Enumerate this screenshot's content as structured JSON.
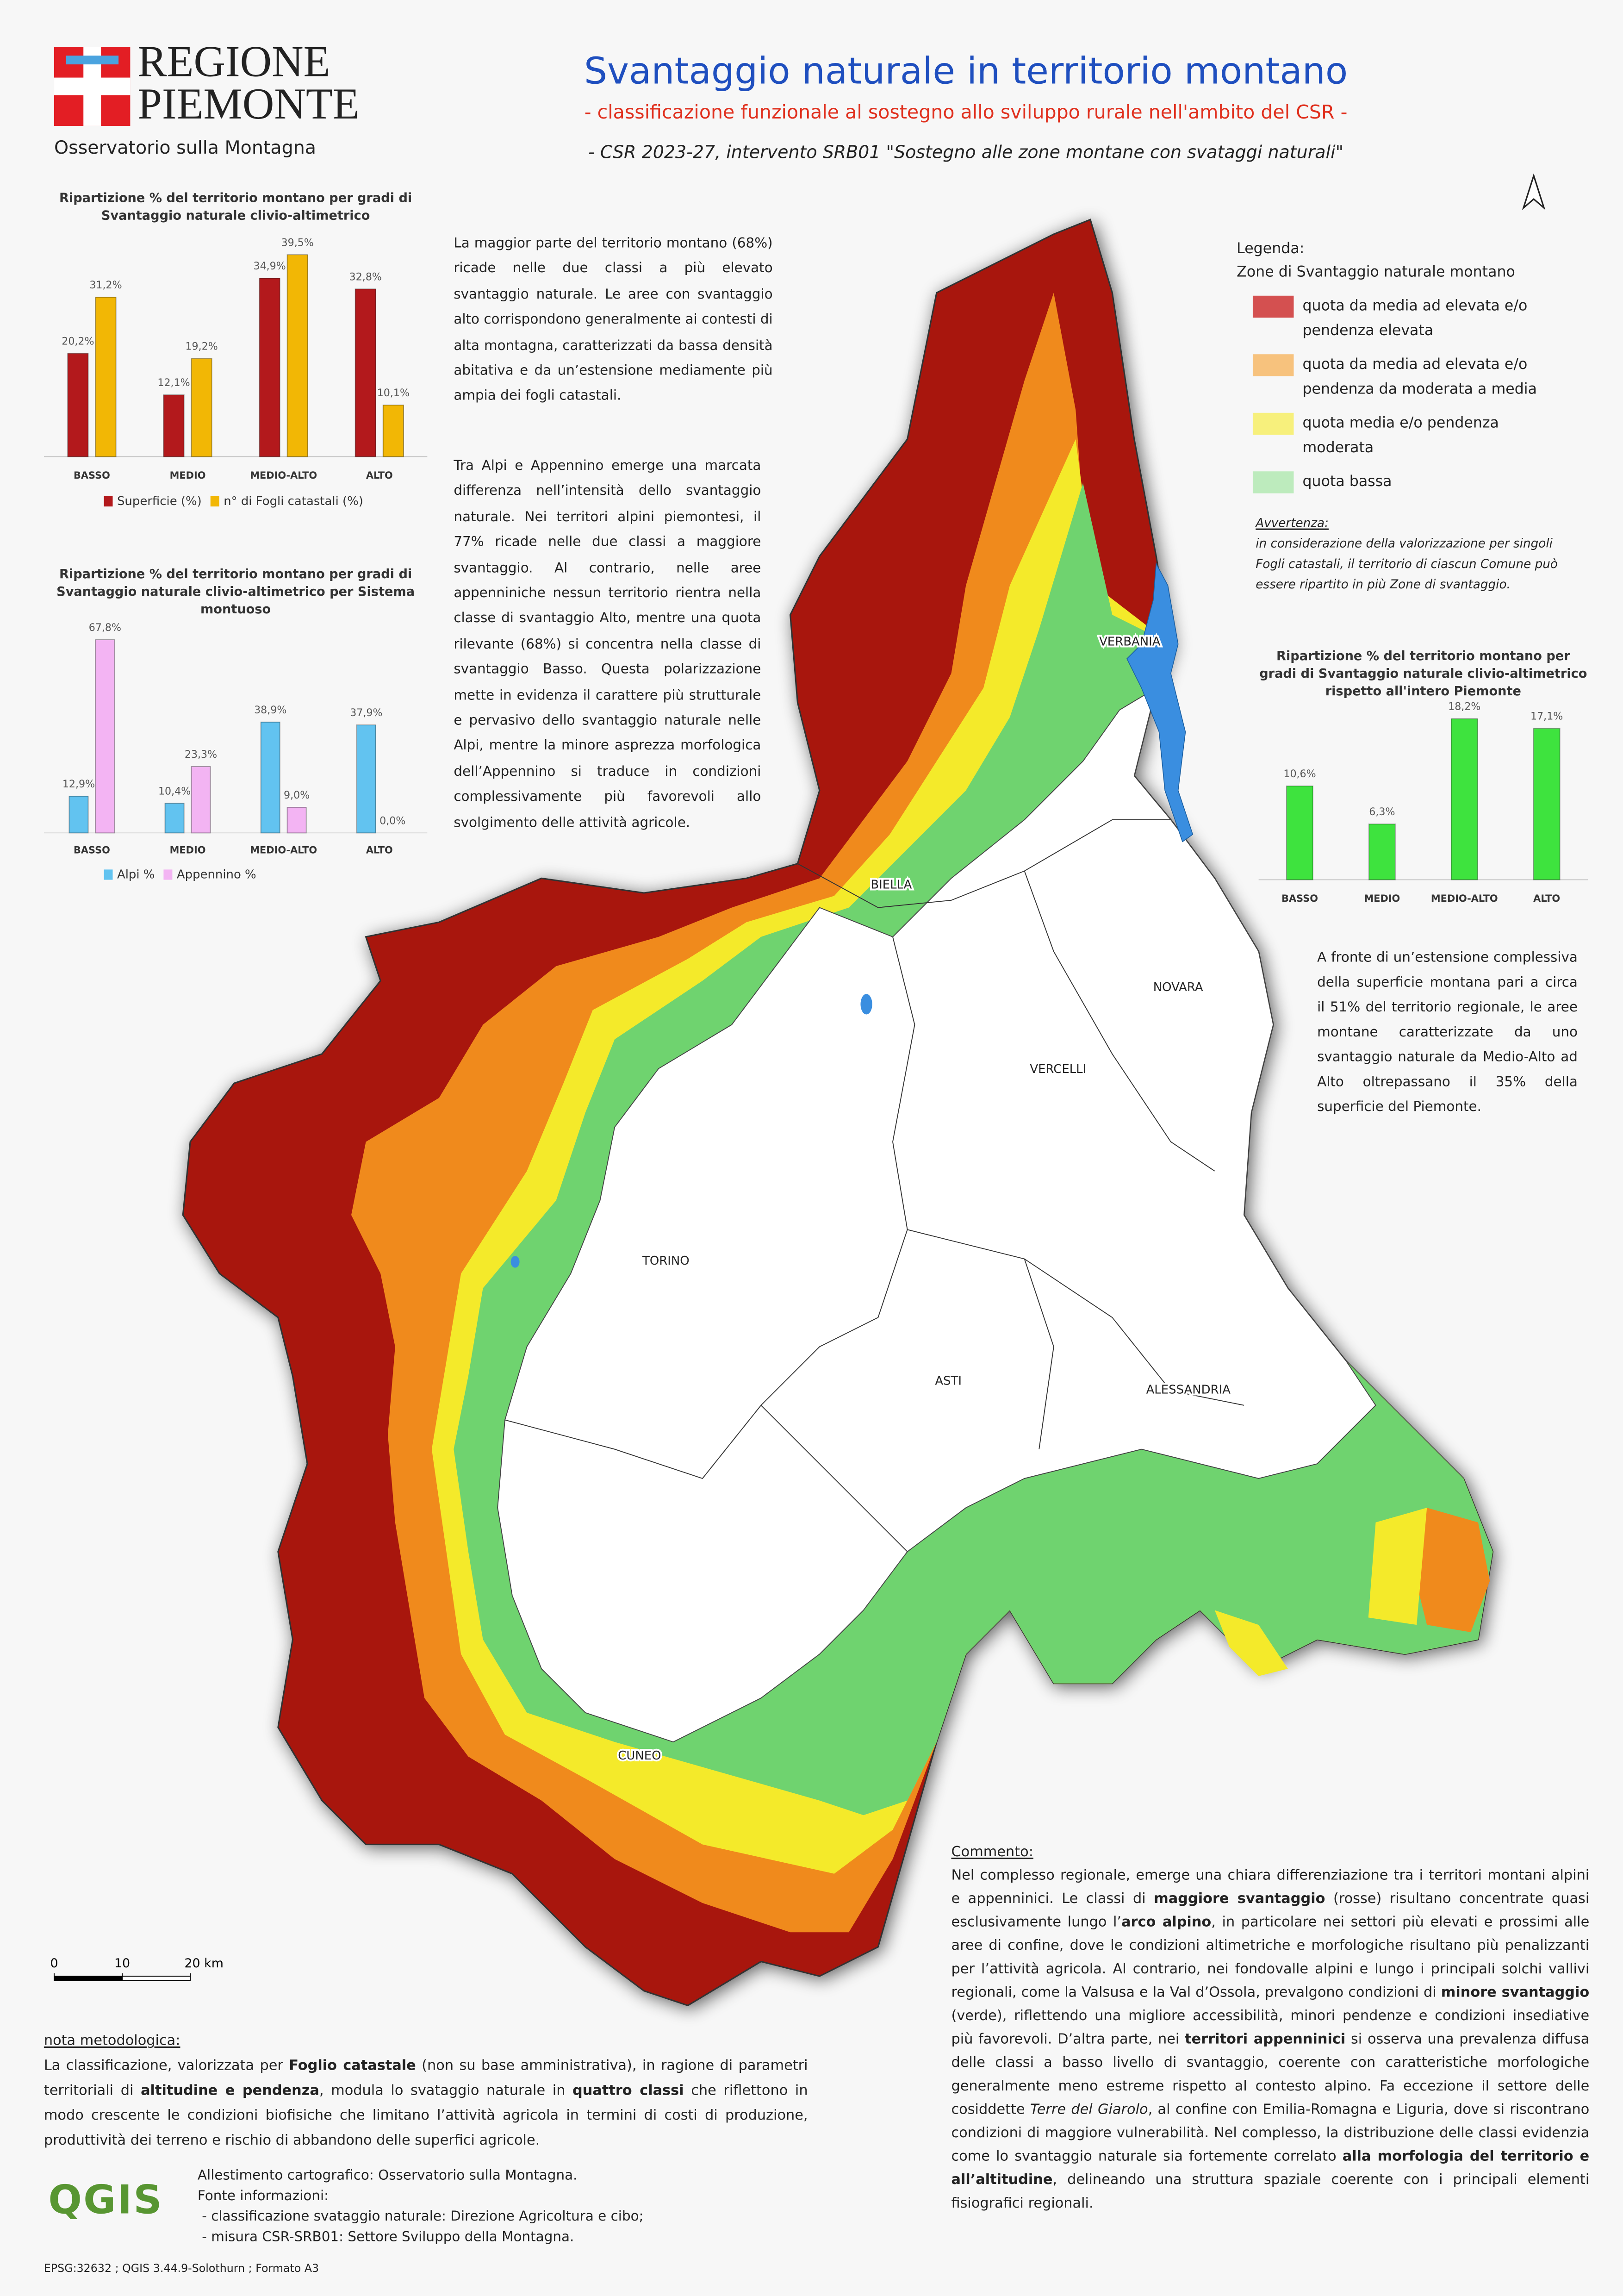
{
  "header": {
    "logo_line1": "REGIONE",
    "logo_line2": "PIEMONTE",
    "logo_caption": "Osservatorio sulla Montagna",
    "title": "Svantaggio naturale in territorio montano",
    "subtitle": "- classificazione funzionale al sostegno allo sviluppo rurale nell'ambito del CSR -",
    "subtitle2": "- CSR 2023-27, intervento SRB01 \"Sostegno alle zone montane con svataggi naturali\""
  },
  "chart_data": [
    {
      "type": "bar",
      "title": "Ripartizione % del territorio montano per gradi di Svantaggio naturale clivio-altimetrico",
      "categories": [
        "BASSO",
        "MEDIO",
        "MEDIO-ALTO",
        "ALTO"
      ],
      "series": [
        {
          "name": "Superficie (%)",
          "color": "#b3191c",
          "values": [
            20.2,
            12.1,
            34.9,
            32.8
          ],
          "value_labels": [
            "20,2%",
            "12,1%",
            "34,9%",
            "32,8%"
          ]
        },
        {
          "name": "n° di Fogli catastali (%)",
          "color": "#f2b705",
          "values": [
            31.2,
            19.2,
            39.5,
            10.1
          ],
          "value_labels": [
            "31,2%",
            "19,2%",
            "39,5%",
            "10,1%"
          ]
        }
      ]
    },
    {
      "type": "bar",
      "title": "Ripartizione % del territorio montano per gradi di Svantaggio naturale clivio-altimetrico per Sistema montuoso",
      "categories": [
        "BASSO",
        "MEDIO",
        "MEDIO-ALTO",
        "ALTO"
      ],
      "series": [
        {
          "name": "Alpi %",
          "color": "#62c3f0",
          "values": [
            12.9,
            10.4,
            38.9,
            37.9
          ],
          "value_labels": [
            "12,9%",
            "10,4%",
            "38,9%",
            "37,9%"
          ]
        },
        {
          "name": "Appennino %",
          "color": "#f3b4f3",
          "values": [
            67.8,
            23.3,
            9.0,
            0.0
          ],
          "value_labels": [
            "67,8%",
            "23,3%",
            "9,0%",
            "0,0%"
          ]
        }
      ]
    },
    {
      "type": "bar",
      "title": "Ripartizione % del territorio montano per gradi di Svantaggio naturale clivio-altimetrico rispetto all'intero Piemonte",
      "categories": [
        "BASSO",
        "MEDIO",
        "MEDIO-ALTO",
        "ALTO"
      ],
      "values": [
        10.6,
        6.3,
        18.2,
        17.1
      ],
      "value_labels": [
        "10,6%",
        "6,3%",
        "18,2%",
        "17,1%"
      ],
      "color": "#3ee33e"
    }
  ],
  "paragraph1": "La maggior parte del territorio montano (68%) ricade nelle due classi a più elevato svantaggio naturale. Le aree con svantaggio alto corrispondono generalmente ai contesti di alta montagna, caratterizzati da bassa densità abitativa e da un’estensione mediamente più ampia dei fogli catastali.",
  "paragraph2": "Tra Alpi e Appennino emerge una marcata differenza nell’intensità dello svantaggio naturale. Nei territori alpini piemontesi, il 77% ricade nelle due classi a maggiore svantaggio. Al contrario, nelle aree appenniniche nessun territorio rientra nella classe di svantaggio Alto, mentre una quota rilevante (68%) si concentra nella classe di svantaggio Basso. Questa polarizzazione mette in evidenza il carattere più strutturale e pervasivo dello svantaggio naturale nelle Alpi, mentre la minore asprezza morfologica dell’Appennino si traduce in condizioni complessivamente più favorevoli allo svolgimento delle attività agricole.",
  "paragraph3": "A fronte di un’estensione complessiva della superficie montana pari a circa il 51% del territorio regionale, le aree montane caratterizzate da uno svantaggio naturale da Medio-Alto ad Alto oltrepassano il 35% della superficie del Piemonte.",
  "legend": {
    "heading": "Legenda:",
    "subheading": "Zone di Svantaggio naturale montano",
    "items": [
      {
        "text": "quota da media ad elevata e/o pendenza elevata",
        "color": "#d45050"
      },
      {
        "text": "quota da media ad elevata e/o pendenza da moderata a media",
        "color": "#f7c27d"
      },
      {
        "text": "quota media e/o pendenza moderata",
        "color": "#f7f07c"
      },
      {
        "text": "quota bassa",
        "color": "#bdebbd"
      }
    ]
  },
  "warning": {
    "heading": "Avvertenza:",
    "text": "in considerazione della valorizzazione per singoli Fogli catastali, il territorio di ciascun Comune può essere ripartito in più Zone di svantaggio."
  },
  "map": {
    "cities": [
      "VERBANIA",
      "BIELLA",
      "NOVARA",
      "VERCELLI",
      "TORINO",
      "ASTI",
      "ALESSANDRIA",
      "CUNEO"
    ],
    "scale_bar": {
      "ticks": [
        0,
        10,
        {
          "value": 20,
          "label": "20 km"
        }
      ]
    }
  },
  "comment": {
    "heading": "Commento:",
    "segments": [
      {
        "text": "Nel complesso regionale, emerge una chiara differenziazione tra i territori montani alpini e appenninici. Le classi di "
      },
      {
        "text": "maggiore svantaggio",
        "style": "bold"
      },
      {
        "text": " (rosse) risultano concentrate quasi esclusivamente lungo l’"
      },
      {
        "text": "arco alpino",
        "style": "bold"
      },
      {
        "text": ", in particolare nei settori più elevati e prossimi alle aree di confine, dove le condizioni altimetriche e morfologiche risultano più penalizzanti per l’attività agricola. Al contrario, nei fondovalle alpini e lungo i principali solchi vallivi regionali, come la Valsusa e la Val d’Ossola, prevalgono condizioni di "
      },
      {
        "text": "minore svantaggio",
        "style": "bold"
      },
      {
        "text": " (verde), riflettendo una migliore accessibilità, minori pendenze e condizioni insediative più favorevoli. D’altra parte, nei "
      },
      {
        "text": "territori appenninici",
        "style": "bold"
      },
      {
        "text": " si osserva una prevalenza diffusa delle classi a basso livello di svantaggio, coerente con caratteristiche morfologiche generalmente meno estreme rispetto al contesto alpino. Fa eccezione il settore delle cosiddette "
      },
      {
        "text": "Terre del Giarolo",
        "style": "italic"
      },
      {
        "text": ", al confine con Emilia-Romagna e Liguria, dove si riscontrano condizioni di maggiore vulnerabilità. Nel complesso, la distribuzione delle classi evidenzia come lo svantaggio naturale sia fortemente correlato "
      },
      {
        "text": "alla morfologia del territorio e all’altitudine",
        "style": "bold"
      },
      {
        "text": ", delineando una struttura spaziale coerente con i principali elementi fisiografici regionali."
      }
    ]
  },
  "methodology": {
    "heading": "nota metodologica:",
    "segments": [
      {
        "text": "La classificazione, valorizzata per "
      },
      {
        "text": "Foglio catastale",
        "style": "bold"
      },
      {
        "text": " (non su base amministrativa), in ragione di parametri territoriali di "
      },
      {
        "text": "altitudine e pendenza",
        "style": "bold"
      },
      {
        "text": ", modula lo svataggio naturale in "
      },
      {
        "text": "quattro classi",
        "style": "bold"
      },
      {
        "text": " che riflettono in modo crescente le condizioni biofisiche che limitano l’attività agricola in termini di costi di produzione, produttività dei terreno e rischio di abbandono delle superfici agricole."
      }
    ]
  },
  "credits": {
    "logo": "QGIS",
    "lines": [
      "Allestimento cartografico: Osservatorio sulla Montagna.",
      "Fonte informazioni:",
      " - classificazione svataggio naturale: Direzione Agricoltura e cibo;",
      " - misura CSR-SRB01: Settore Sviluppo della Montagna."
    ],
    "footer": "EPSG:32632 ; QGIS 3.44.9-Solothurn ; Formato A3"
  }
}
